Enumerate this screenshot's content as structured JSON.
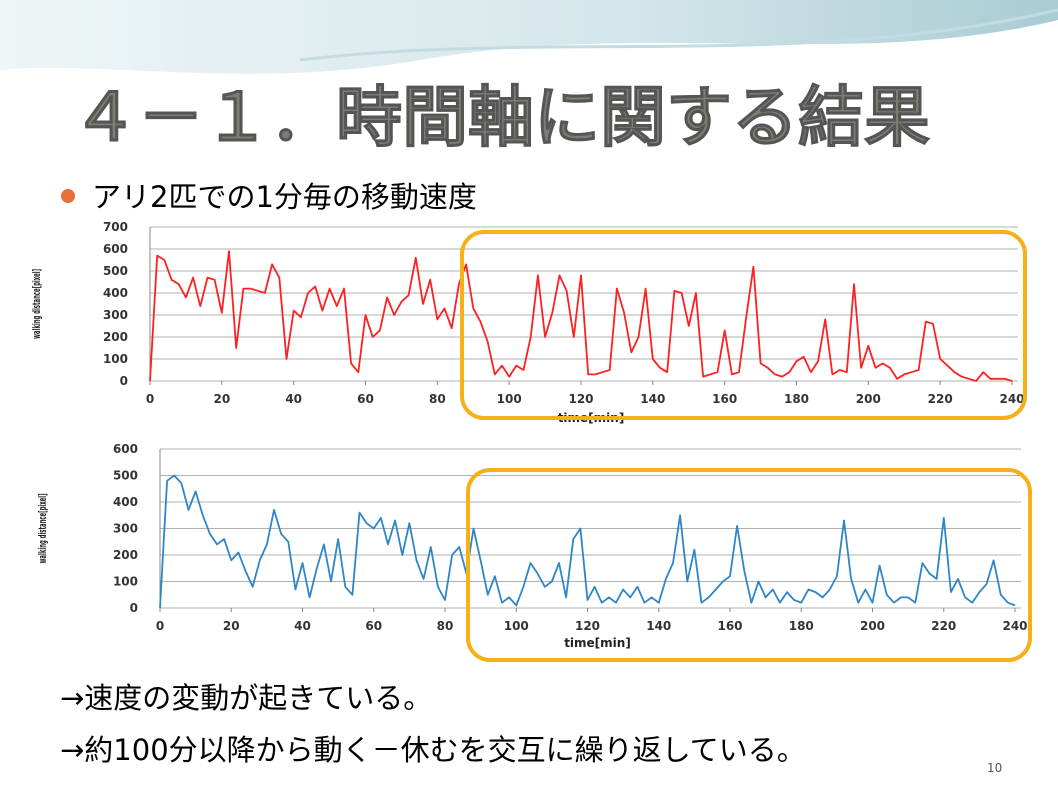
{
  "slide": {
    "title": "４－１．時間軸に関する結果",
    "bullet": "アリ2匹での1分毎の移動速度",
    "notes": [
      "→速度の変動が起きている。",
      "→約100分以降から動く－休むを交互に繰り返している。"
    ],
    "page_number": "10"
  },
  "chart_data": [
    {
      "type": "line",
      "y_label": "walking distance[pixel]",
      "x_label": "time[min]",
      "xlim": [
        0,
        240
      ],
      "xticks": [
        0,
        20,
        40,
        60,
        80,
        100,
        120,
        140,
        160,
        180,
        200,
        220,
        240
      ],
      "ylim": [
        0,
        700
      ],
      "yticks": [
        0,
        100,
        200,
        300,
        400,
        500,
        600,
        700
      ],
      "grid": true,
      "series": [
        {
          "color": "#ff2020",
          "x": [
            0,
            2,
            4,
            6,
            8,
            10,
            12,
            14,
            16,
            18,
            20,
            22,
            24,
            26,
            28,
            30,
            32,
            34,
            36,
            38,
            40,
            42,
            44,
            46,
            48,
            50,
            52,
            54,
            56,
            58,
            60,
            62,
            64,
            66,
            68,
            70,
            72,
            74,
            76,
            78,
            80,
            82,
            84,
            86,
            88,
            90,
            92,
            94,
            96,
            98,
            100,
            102,
            104,
            106,
            108,
            110,
            112,
            114,
            116,
            118,
            120,
            122,
            124,
            126,
            128,
            130,
            132,
            134,
            136,
            138,
            140,
            142,
            144,
            146,
            148,
            150,
            152,
            154,
            156,
            158,
            160,
            162,
            164,
            166,
            168,
            170,
            172,
            174,
            176,
            178,
            180,
            182,
            184,
            186,
            188,
            190,
            192,
            194,
            196,
            198,
            200,
            202,
            204,
            206,
            208,
            210,
            212,
            214,
            216,
            218,
            220,
            222,
            224,
            226,
            228,
            230,
            232,
            234,
            236,
            238,
            240
          ],
          "values": [
            0,
            570,
            550,
            460,
            440,
            380,
            470,
            340,
            470,
            460,
            310,
            590,
            150,
            420,
            420,
            410,
            400,
            530,
            470,
            100,
            320,
            290,
            400,
            430,
            320,
            420,
            340,
            420,
            80,
            40,
            300,
            200,
            230,
            380,
            300,
            360,
            390,
            560,
            350,
            460,
            280,
            330,
            240,
            440,
            530,
            330,
            270,
            180,
            30,
            70,
            20,
            70,
            50,
            200,
            480,
            200,
            310,
            480,
            410,
            200,
            480,
            30,
            30,
            40,
            50,
            420,
            310,
            130,
            200,
            420,
            100,
            60,
            40,
            410,
            400,
            250,
            400,
            20,
            30,
            40,
            230,
            30,
            40,
            290,
            520,
            80,
            60,
            30,
            20,
            40,
            90,
            110,
            40,
            90,
            280,
            30,
            50,
            40,
            440,
            60,
            160,
            60,
            80,
            60,
            10,
            30,
            40,
            50,
            270,
            260,
            100,
            70,
            40,
            20,
            10,
            0,
            40,
            10,
            10,
            10,
            0
          ]
        }
      ]
    },
    {
      "type": "line",
      "y_label": "walking distance[pixel]",
      "x_label": "time[min]",
      "xlim": [
        0,
        240
      ],
      "xticks": [
        0,
        20,
        40,
        60,
        80,
        100,
        120,
        140,
        160,
        180,
        200,
        220,
        240
      ],
      "ylim": [
        0,
        600
      ],
      "yticks": [
        0,
        100,
        200,
        300,
        400,
        500,
        600
      ],
      "grid": true,
      "series": [
        {
          "color": "#2e86c8",
          "x": [
            0,
            2,
            4,
            6,
            8,
            10,
            12,
            14,
            16,
            18,
            20,
            22,
            24,
            26,
            28,
            30,
            32,
            34,
            36,
            38,
            40,
            42,
            44,
            46,
            48,
            50,
            52,
            54,
            56,
            58,
            60,
            62,
            64,
            66,
            68,
            70,
            72,
            74,
            76,
            78,
            80,
            82,
            84,
            86,
            88,
            90,
            92,
            94,
            96,
            98,
            100,
            102,
            104,
            106,
            108,
            110,
            112,
            114,
            116,
            118,
            120,
            122,
            124,
            126,
            128,
            130,
            132,
            134,
            136,
            138,
            140,
            142,
            144,
            146,
            148,
            150,
            152,
            154,
            156,
            158,
            160,
            162,
            164,
            166,
            168,
            170,
            172,
            174,
            176,
            178,
            180,
            182,
            184,
            186,
            188,
            190,
            192,
            194,
            196,
            198,
            200,
            202,
            204,
            206,
            208,
            210,
            212,
            214,
            216,
            218,
            220,
            222,
            224,
            226,
            228,
            230,
            232,
            234,
            236,
            238,
            240
          ],
          "values": [
            0,
            480,
            500,
            470,
            370,
            440,
            350,
            280,
            240,
            260,
            180,
            210,
            140,
            80,
            180,
            240,
            370,
            280,
            250,
            70,
            170,
            40,
            150,
            240,
            100,
            260,
            80,
            50,
            360,
            320,
            300,
            340,
            240,
            330,
            200,
            320,
            180,
            110,
            230,
            80,
            30,
            200,
            230,
            130,
            300,
            180,
            50,
            120,
            20,
            40,
            10,
            80,
            170,
            130,
            80,
            100,
            170,
            40,
            260,
            300,
            30,
            80,
            20,
            40,
            20,
            70,
            40,
            80,
            20,
            40,
            20,
            110,
            170,
            350,
            100,
            220,
            20,
            40,
            70,
            100,
            120,
            310,
            140,
            20,
            100,
            40,
            70,
            20,
            60,
            30,
            20,
            70,
            60,
            40,
            70,
            120,
            330,
            110,
            20,
            70,
            20,
            160,
            50,
            20,
            40,
            40,
            20,
            170,
            130,
            110,
            340,
            60,
            110,
            40,
            20,
            60,
            90,
            180,
            50,
            20,
            10
          ]
        }
      ]
    }
  ]
}
